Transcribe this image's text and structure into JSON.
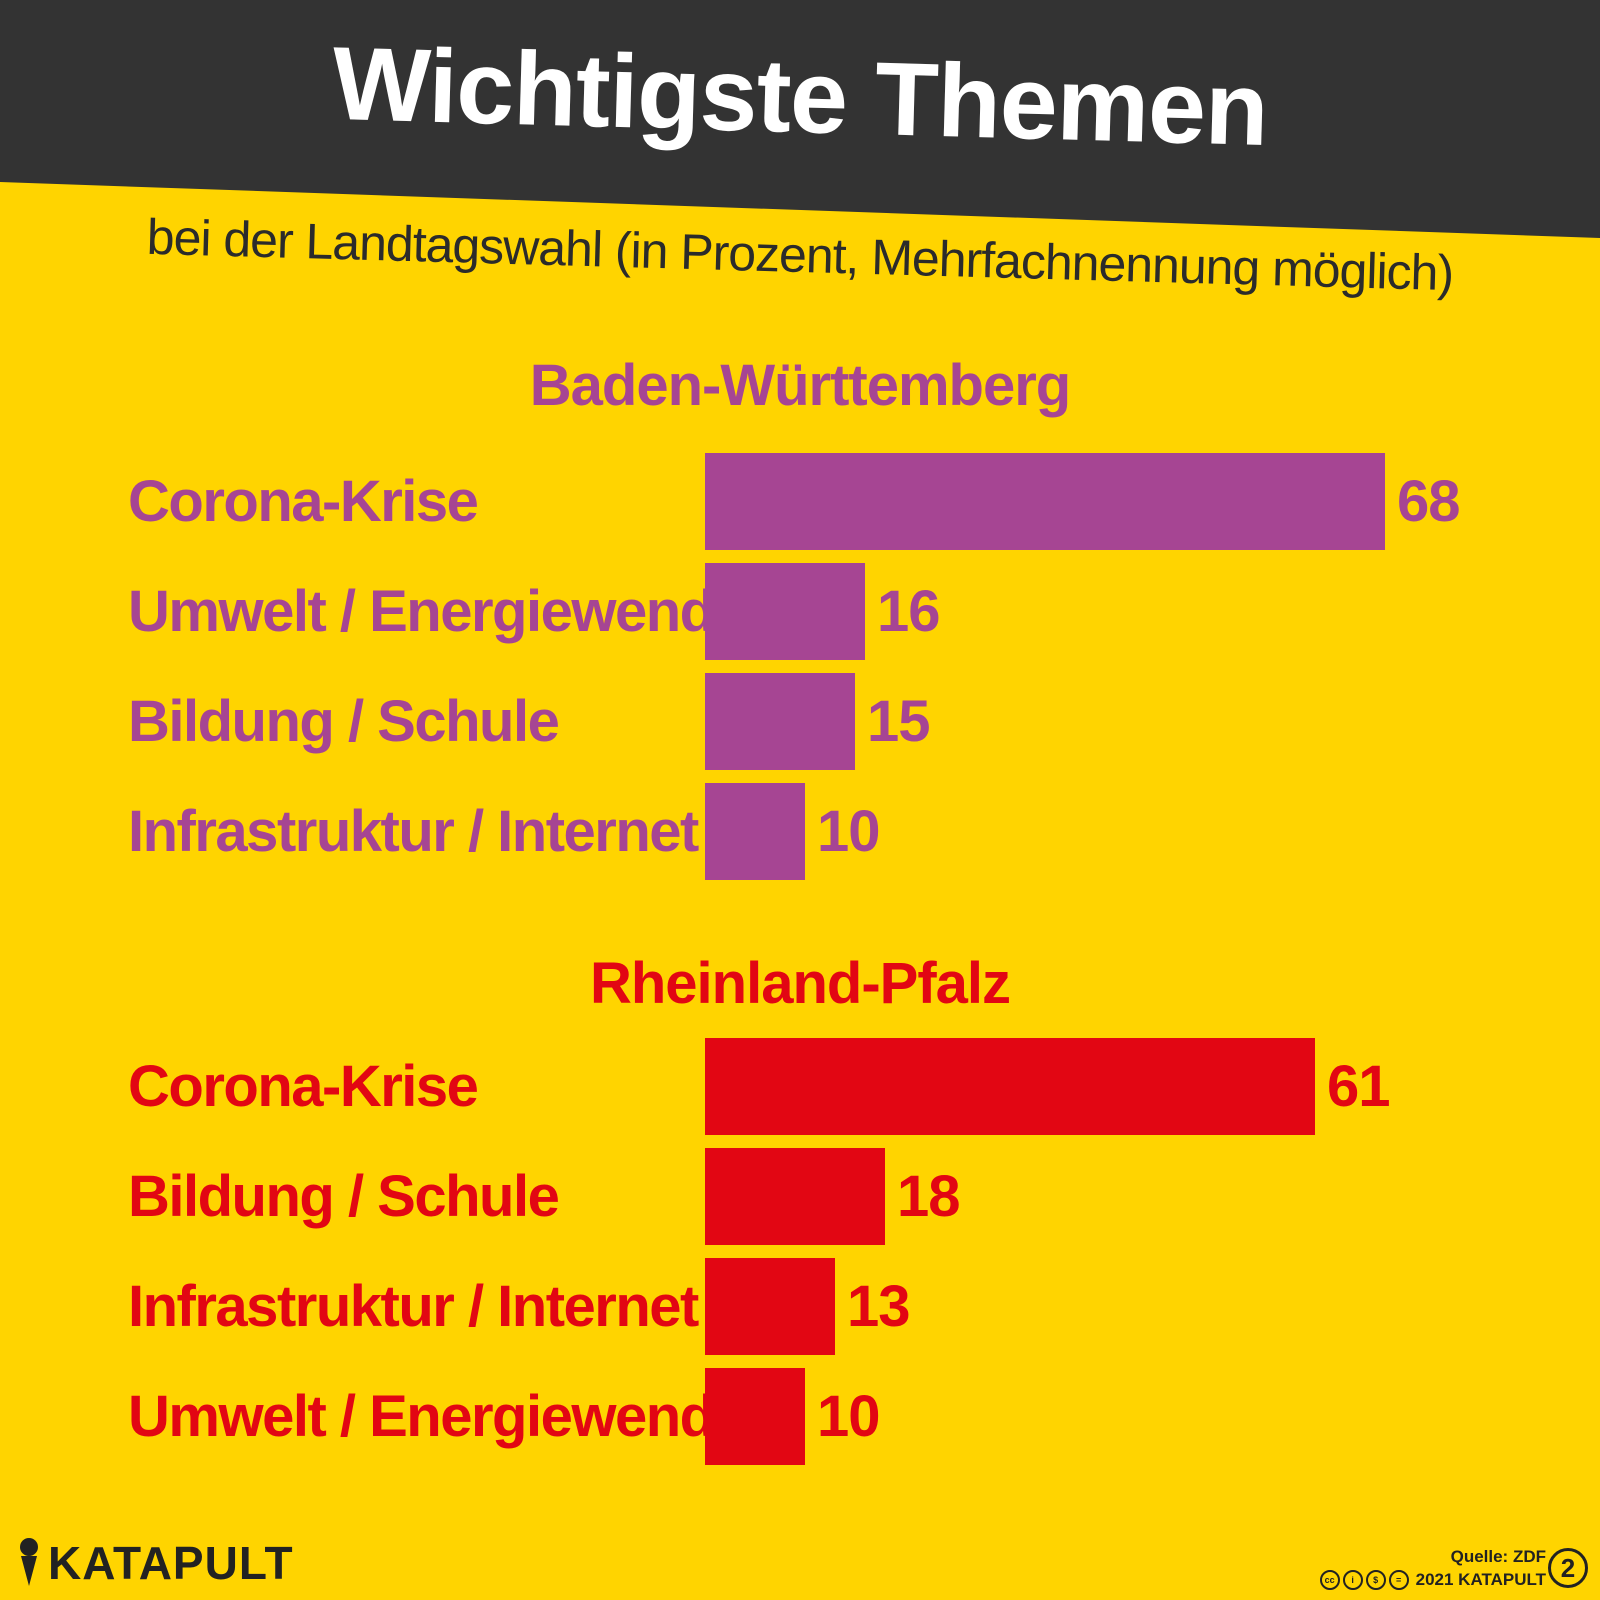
{
  "header": {
    "title": "Wichtigste Themen",
    "subtitle": "bei der Landtagswahl (in Prozent, Mehrfachnennung möglich)"
  },
  "colors": {
    "background": "#ffd400",
    "header": "#333333",
    "bw": "#a64593",
    "rp": "#e20613"
  },
  "chart_data": [
    {
      "type": "bar",
      "orientation": "horizontal",
      "title": "Baden-Württemberg",
      "categories": [
        "Corona-Krise",
        "Umwelt / Energiewende",
        "Bildung / Schule",
        "Infrastruktur / Internet"
      ],
      "values": [
        68,
        16,
        15,
        10
      ],
      "color": "#a64593",
      "xlabel": "",
      "ylabel": ""
    },
    {
      "type": "bar",
      "orientation": "horizontal",
      "title": "Rheinland-Pfalz",
      "categories": [
        "Corona-Krise",
        "Bildung / Schule",
        "Infrastruktur / Internet",
        "Umwelt / Energiewende"
      ],
      "values": [
        61,
        18,
        13,
        10
      ],
      "color": "#e20613",
      "xlabel": "",
      "ylabel": ""
    }
  ],
  "footer": {
    "brand": "KATAPULT",
    "source": "Quelle: ZDF",
    "credit": "2021 KATAPULT",
    "license_icons": [
      "cc-icon",
      "by-icon",
      "nc-icon",
      "nd-icon"
    ],
    "page_badge": "2"
  }
}
